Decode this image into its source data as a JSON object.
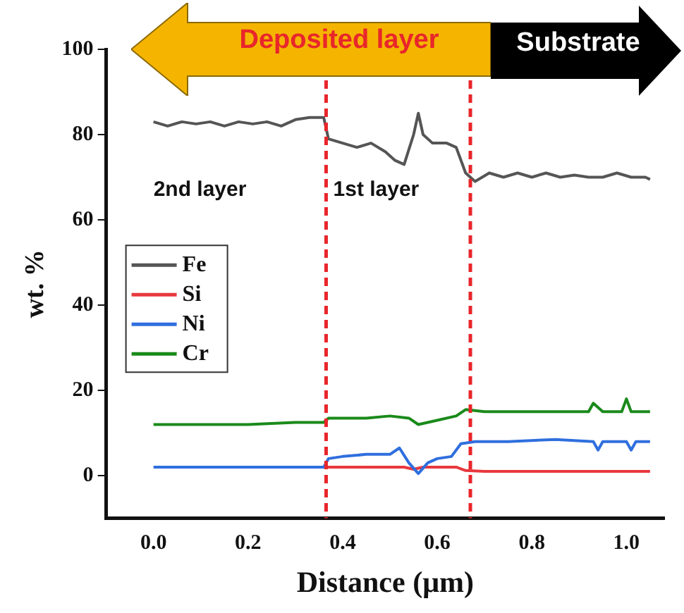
{
  "chart_data": {
    "type": "line",
    "xlabel": "Distance (μm)",
    "ylabel": "wt. %",
    "annotations": [
      "Deposited layer",
      "Substrate",
      "2nd layer",
      "1st layer"
    ],
    "xlim": [
      -0.1,
      1.08
    ],
    "xticks": [
      {
        "value": 0,
        "label": "0.0"
      },
      {
        "value": 0.2,
        "label": "0.2"
      },
      {
        "value": 0.4,
        "label": "0.4"
      },
      {
        "value": 0.6,
        "label": "0.6"
      },
      {
        "value": 0.8,
        "label": "0.8"
      },
      {
        "value": 1,
        "label": "1.0"
      }
    ],
    "ylim": [
      -10,
      100
    ],
    "yticks": [
      0,
      20,
      40,
      60,
      80,
      100
    ],
    "grid": false,
    "legend": "left",
    "marker": "none",
    "line_style": "solid",
    "ref_lines": [
      {
        "axis": "x",
        "value": 0.365,
        "color": "#e8262b",
        "line_style": "dashed"
      },
      {
        "axis": "x",
        "value": 0.67,
        "color": "#e8262b",
        "line_style": "dashed"
      }
    ],
    "series": [
      {
        "name": "Fe",
        "color": "#555555",
        "x": [
          0,
          0.03,
          0.06,
          0.09,
          0.12,
          0.15,
          0.18,
          0.21,
          0.24,
          0.27,
          0.3,
          0.33,
          0.36,
          0.37,
          0.4,
          0.43,
          0.46,
          0.49,
          0.51,
          0.53,
          0.55,
          0.56,
          0.57,
          0.59,
          0.62,
          0.64,
          0.66,
          0.68,
          0.71,
          0.74,
          0.77,
          0.8,
          0.83,
          0.86,
          0.89,
          0.92,
          0.95,
          0.98,
          1.01,
          1.04,
          1.05
        ],
        "values": [
          83,
          82,
          83,
          82.5,
          83,
          82,
          83,
          82.5,
          83,
          82,
          83.5,
          84,
          84,
          79,
          78,
          77,
          78,
          76,
          74,
          73,
          80,
          85,
          80,
          78,
          78,
          77,
          71,
          69,
          71,
          70,
          71,
          70,
          71,
          70,
          70.5,
          70,
          70,
          71,
          70,
          70,
          69.5
        ]
      },
      {
        "name": "Si",
        "color": "#e8383d",
        "x": [
          0.36,
          0.45,
          0.53,
          0.55,
          0.57,
          0.64,
          0.66,
          0.7,
          0.8,
          0.9,
          1,
          1.05
        ],
        "values": [
          2,
          2,
          2,
          1.5,
          2,
          2,
          1.2,
          1,
          1,
          1,
          1,
          1
        ]
      },
      {
        "name": "Ni",
        "color": "#2f6fde",
        "x": [
          0,
          0.1,
          0.2,
          0.3,
          0.36,
          0.37,
          0.4,
          0.45,
          0.5,
          0.52,
          0.54,
          0.56,
          0.58,
          0.6,
          0.63,
          0.65,
          0.68,
          0.75,
          0.85,
          0.93,
          0.94,
          0.95,
          1,
          1.01,
          1.02,
          1.05
        ],
        "values": [
          2,
          2,
          2,
          2,
          2,
          4,
          4.5,
          5,
          5,
          6.5,
          3,
          0.5,
          3,
          4,
          4.5,
          7.5,
          8,
          8,
          8.5,
          8,
          6,
          8,
          8,
          6,
          8,
          8
        ]
      },
      {
        "name": "Cr",
        "color": "#1a8a1a",
        "x": [
          0,
          0.1,
          0.2,
          0.3,
          0.36,
          0.37,
          0.45,
          0.5,
          0.54,
          0.56,
          0.6,
          0.64,
          0.66,
          0.7,
          0.8,
          0.9,
          0.92,
          0.93,
          0.95,
          0.99,
          1,
          1.01,
          1.05
        ],
        "values": [
          12,
          12,
          12,
          12.5,
          12.5,
          13.5,
          13.5,
          14,
          13.5,
          12,
          13,
          14,
          15.5,
          15,
          15,
          15,
          15,
          17,
          15,
          15,
          18,
          15,
          15
        ]
      }
    ]
  }
}
